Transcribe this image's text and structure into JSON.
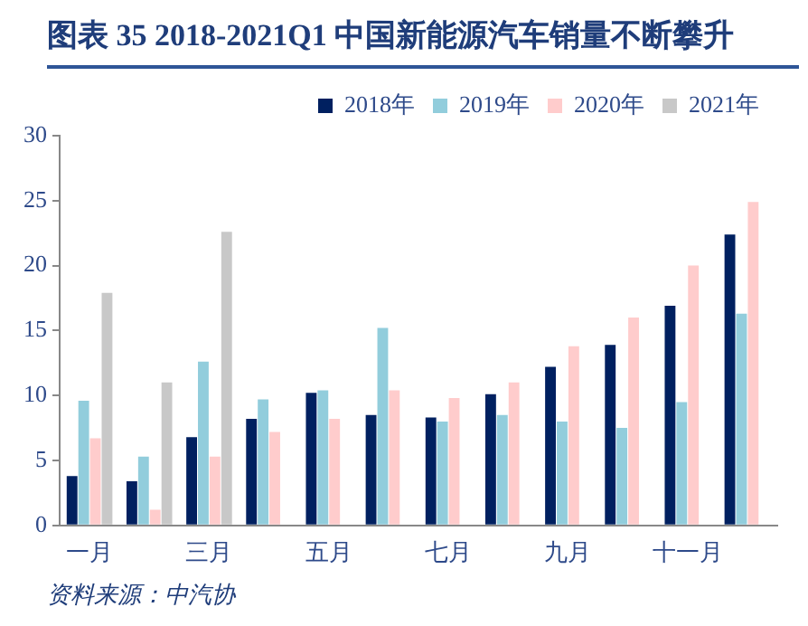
{
  "chart_data": {
    "type": "bar",
    "title": "图表 35  2018-2021Q1 中国新能源汽车销量不断攀升",
    "categories": [
      "一月",
      null,
      "三月",
      null,
      "五月",
      null,
      "七月",
      null,
      "九月",
      null,
      "十一月",
      null
    ],
    "series": [
      {
        "name": "2018年",
        "color": "#002060",
        "values": [
          3.8,
          3.4,
          6.8,
          8.2,
          10.2,
          8.5,
          8.3,
          10.1,
          12.2,
          13.9,
          16.9,
          22.4
        ]
      },
      {
        "name": "2019年",
        "color": "#92cddc",
        "values": [
          9.6,
          5.3,
          12.6,
          9.7,
          10.4,
          15.2,
          8.0,
          8.5,
          8.0,
          7.5,
          9.5,
          16.3
        ]
      },
      {
        "name": "2020年",
        "color": "#ffcccc",
        "values": [
          6.7,
          1.2,
          5.3,
          7.2,
          8.2,
          10.4,
          9.8,
          11.0,
          13.8,
          16.0,
          20.0,
          24.9
        ]
      },
      {
        "name": "2021年",
        "color": "#c8c8c8",
        "values": [
          17.9,
          11.0,
          22.6,
          null,
          null,
          null,
          null,
          null,
          null,
          null,
          null,
          null
        ]
      }
    ],
    "ylim": [
      0,
      30
    ],
    "yticks": [
      0,
      5,
      10,
      15,
      20,
      25,
      30
    ],
    "grid": false,
    "legend": "top",
    "annotations": [
      "资料来源：中汽协"
    ]
  }
}
